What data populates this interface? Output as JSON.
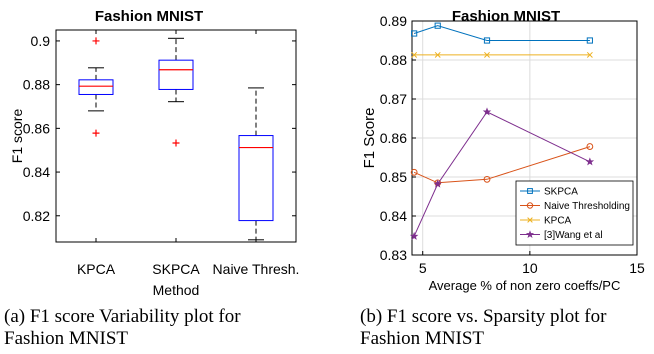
{
  "captions": {
    "a": "(a) F1 score Variability plot for\nFashion MNIST",
    "b": "(b) F1 score vs. Sparsity plot for\nFashion MNIST"
  },
  "chart_data": [
    {
      "type": "box",
      "title": "Fashion MNIST",
      "xlabel": "Method",
      "ylabel": "F1 score",
      "ylim": [
        0.808,
        0.905
      ],
      "yticks": [
        0.82,
        0.84,
        0.86,
        0.88,
        0.9
      ],
      "ytick_labels": [
        "0.82",
        "0.84",
        "0.86",
        "0.88",
        "0.9"
      ],
      "categories": [
        "KPCA",
        "SKPCA",
        "Naive Thresh."
      ],
      "boxes": [
        {
          "q1": 0.8755,
          "median": 0.8793,
          "q3": 0.8822,
          "whisker_low": 0.868,
          "whisker_high": 0.8877,
          "outliers": [
            0.9,
            0.8578
          ]
        },
        {
          "q1": 0.8778,
          "median": 0.8868,
          "q3": 0.8912,
          "whisker_low": 0.8722,
          "whisker_high": 0.9012,
          "outliers": [
            0.8533
          ]
        },
        {
          "q1": 0.8178,
          "median": 0.8512,
          "q3": 0.8567,
          "whisker_low": 0.809,
          "whisker_high": 0.8785,
          "outliers": []
        }
      ],
      "colors": {
        "box": "#0000ff",
        "median": "#ff0000",
        "whisker": "#000000",
        "outlier": "#ff0000"
      }
    },
    {
      "type": "line",
      "title": "Fashion MNIST",
      "xlabel": "Average % of non zero coeffs/PC",
      "ylabel": "F1 Score",
      "xlim": [
        4.5,
        15
      ],
      "ylim": [
        0.83,
        0.89
      ],
      "xticks": [
        5,
        10,
        15
      ],
      "xtick_labels": [
        "5",
        "10",
        "15"
      ],
      "yticks": [
        0.83,
        0.84,
        0.85,
        0.86,
        0.87,
        0.88,
        0.89
      ],
      "ytick_labels": [
        "0.83",
        "0.84",
        "0.85",
        "0.86",
        "0.87",
        "0.88",
        "0.89"
      ],
      "grid": true,
      "legend_position": "lower-right",
      "series": [
        {
          "name": "SKPCA",
          "marker": "square",
          "color": "#0072bd",
          "x": [
            4.6,
            5.7,
            8.0,
            12.8
          ],
          "y": [
            0.8868,
            0.8888,
            0.885,
            0.885
          ]
        },
        {
          "name": "Naive Thresholding",
          "marker": "circle",
          "color": "#d95319",
          "x": [
            4.6,
            5.7,
            8.0,
            12.8
          ],
          "y": [
            0.8512,
            0.8485,
            0.8494,
            0.8578
          ]
        },
        {
          "name": "KPCA",
          "marker": "x",
          "color": "#edb120",
          "x": [
            4.6,
            5.7,
            8.0,
            12.8
          ],
          "y": [
            0.8813,
            0.8813,
            0.8813,
            0.8813
          ]
        },
        {
          "name": "[3]Wang et al",
          "marker": "star",
          "color": "#7e2f8e",
          "x": [
            4.6,
            5.7,
            8.0,
            12.8
          ],
          "y": [
            0.8348,
            0.8482,
            0.8667,
            0.8539
          ]
        }
      ]
    }
  ]
}
